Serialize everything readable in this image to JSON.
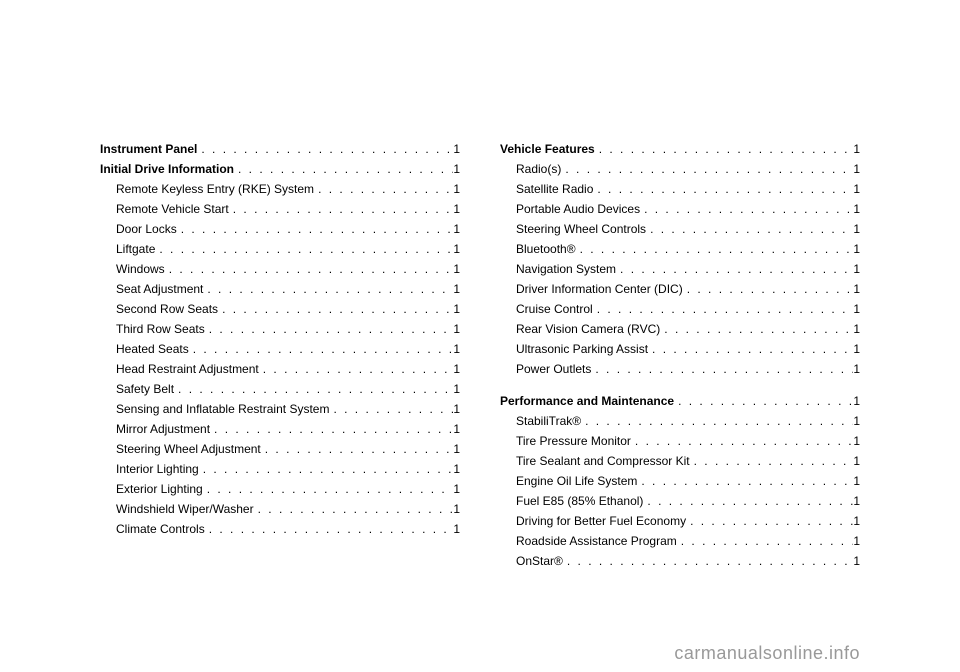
{
  "watermark": "carmanualsonline.info",
  "columns": [
    {
      "entries": [
        {
          "label": "Instrument Panel",
          "page": "1",
          "bold": true,
          "indent": false
        },
        {
          "label": "Initial Drive Information",
          "page": "1",
          "bold": true,
          "indent": false
        },
        {
          "label": "Remote Keyless Entry (RKE) System",
          "page": "1",
          "bold": false,
          "indent": true
        },
        {
          "label": "Remote Vehicle Start",
          "page": "1",
          "bold": false,
          "indent": true
        },
        {
          "label": "Door Locks",
          "page": "1",
          "bold": false,
          "indent": true
        },
        {
          "label": "Liftgate",
          "page": "1",
          "bold": false,
          "indent": true
        },
        {
          "label": "Windows",
          "page": "1",
          "bold": false,
          "indent": true
        },
        {
          "label": "Seat Adjustment",
          "page": "1",
          "bold": false,
          "indent": true
        },
        {
          "label": "Second Row Seats",
          "page": "1",
          "bold": false,
          "indent": true
        },
        {
          "label": "Third Row Seats",
          "page": "1",
          "bold": false,
          "indent": true
        },
        {
          "label": "Heated Seats",
          "page": "1",
          "bold": false,
          "indent": true
        },
        {
          "label": "Head Restraint Adjustment",
          "page": "1",
          "bold": false,
          "indent": true
        },
        {
          "label": "Safety Belt",
          "page": "1",
          "bold": false,
          "indent": true
        },
        {
          "label": "Sensing and Inflatable Restraint System",
          "page": "1",
          "bold": false,
          "indent": true
        },
        {
          "label": "Mirror Adjustment",
          "page": "1",
          "bold": false,
          "indent": true
        },
        {
          "label": "Steering Wheel Adjustment",
          "page": "1",
          "bold": false,
          "indent": true
        },
        {
          "label": "Interior Lighting",
          "page": "1",
          "bold": false,
          "indent": true
        },
        {
          "label": "Exterior Lighting",
          "page": "1",
          "bold": false,
          "indent": true
        },
        {
          "label": "Windshield Wiper/Washer",
          "page": "1",
          "bold": false,
          "indent": true
        },
        {
          "label": "Climate Controls",
          "page": "1",
          "bold": false,
          "indent": true
        }
      ]
    },
    {
      "entries": [
        {
          "label": "Vehicle Features",
          "page": "1",
          "bold": true,
          "indent": false
        },
        {
          "label": "Radio(s)",
          "page": "1",
          "bold": false,
          "indent": true
        },
        {
          "label": "Satellite Radio",
          "page": "1",
          "bold": false,
          "indent": true
        },
        {
          "label": "Portable Audio Devices",
          "page": "1",
          "bold": false,
          "indent": true
        },
        {
          "label": "Steering Wheel Controls",
          "page": "1",
          "bold": false,
          "indent": true
        },
        {
          "label": "Bluetooth®",
          "page": "1",
          "bold": false,
          "indent": true
        },
        {
          "label": "Navigation System",
          "page": "1",
          "bold": false,
          "indent": true
        },
        {
          "label": "Driver Information Center (DIC)",
          "page": "1",
          "bold": false,
          "indent": true
        },
        {
          "label": "Cruise Control",
          "page": "1",
          "bold": false,
          "indent": true
        },
        {
          "label": "Rear Vision Camera (RVC)",
          "page": "1",
          "bold": false,
          "indent": true
        },
        {
          "label": "Ultrasonic Parking Assist",
          "page": "1",
          "bold": false,
          "indent": true
        },
        {
          "label": "Power Outlets",
          "page": "1",
          "bold": false,
          "indent": true
        },
        {
          "spacer": true
        },
        {
          "label": "Performance and Maintenance",
          "page": "1",
          "bold": true,
          "indent": false
        },
        {
          "label": "StabiliTrak®",
          "page": "1",
          "bold": false,
          "indent": true
        },
        {
          "label": "Tire Pressure Monitor",
          "page": "1",
          "bold": false,
          "indent": true
        },
        {
          "label": "Tire Sealant and Compressor Kit",
          "page": "1",
          "bold": false,
          "indent": true
        },
        {
          "label": "Engine Oil Life System",
          "page": "1",
          "bold": false,
          "indent": true
        },
        {
          "label": "Fuel E85 (85% Ethanol)",
          "page": "1",
          "bold": false,
          "indent": true
        },
        {
          "label": "Driving for Better Fuel Economy",
          "page": "1",
          "bold": false,
          "indent": true
        },
        {
          "label": "Roadside Assistance Program",
          "page": "1",
          "bold": false,
          "indent": true
        },
        {
          "label": "OnStar®",
          "page": "1",
          "bold": false,
          "indent": true
        }
      ]
    }
  ]
}
